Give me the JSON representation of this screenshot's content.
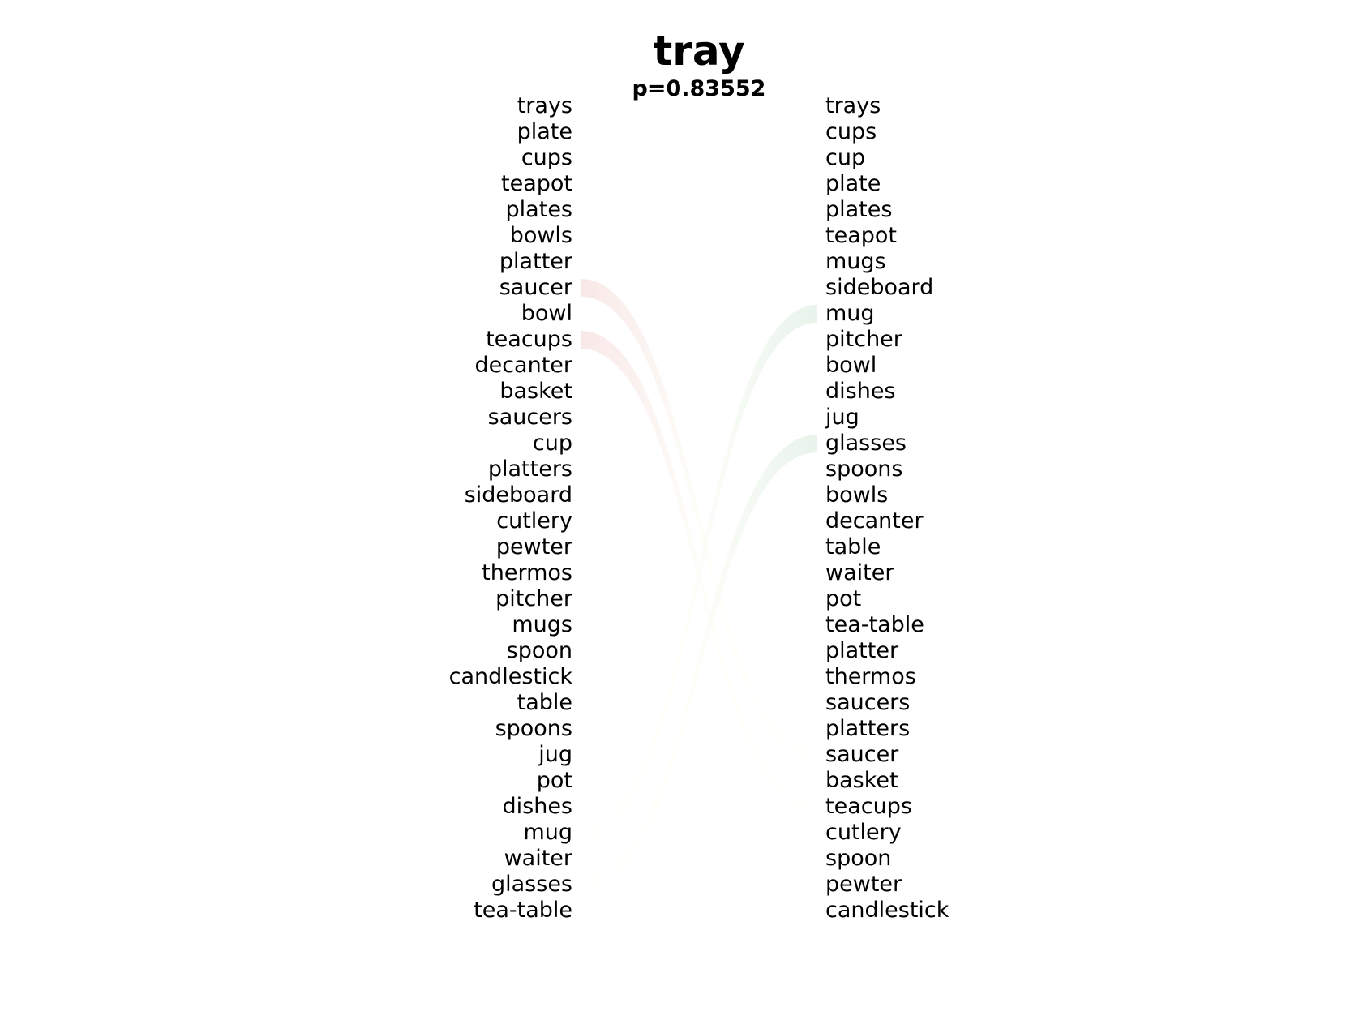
{
  "title": "tray",
  "subtitle": "p=0.83552",
  "colors": {
    "text": "#000000",
    "left_link": "#f3d5d5",
    "right_link": "#d5eadb"
  },
  "left_list": [
    "trays",
    "plate",
    "cups",
    "teapot",
    "plates",
    "bowls",
    "platter",
    "saucer",
    "bowl",
    "teacups",
    "decanter",
    "basket",
    "saucers",
    "cup",
    "platters",
    "sideboard",
    "cutlery",
    "pewter",
    "thermos",
    "pitcher",
    "mugs",
    "spoon",
    "candlestick",
    "table",
    "spoons",
    "jug",
    "pot",
    "dishes",
    "mug",
    "waiter",
    "glasses",
    "tea-table"
  ],
  "right_list": [
    "trays",
    "cups",
    "cup",
    "plate",
    "plates",
    "teapot",
    "mugs",
    "sideboard",
    "mug",
    "pitcher",
    "bowl",
    "dishes",
    "jug",
    "glasses",
    "spoons",
    "bowls",
    "decanter",
    "table",
    "waiter",
    "pot",
    "tea-table",
    "platter",
    "thermos",
    "saucers",
    "platters",
    "saucer",
    "basket",
    "teacups",
    "cutlery",
    "spoon",
    "pewter",
    "candlestick"
  ],
  "links": [
    {
      "from": 7,
      "to": 25,
      "side": "left"
    },
    {
      "from": 9,
      "to": 27,
      "side": "left"
    },
    {
      "from": 28,
      "to": 8,
      "side": "right"
    },
    {
      "from": 30,
      "to": 13,
      "side": "right"
    }
  ]
}
